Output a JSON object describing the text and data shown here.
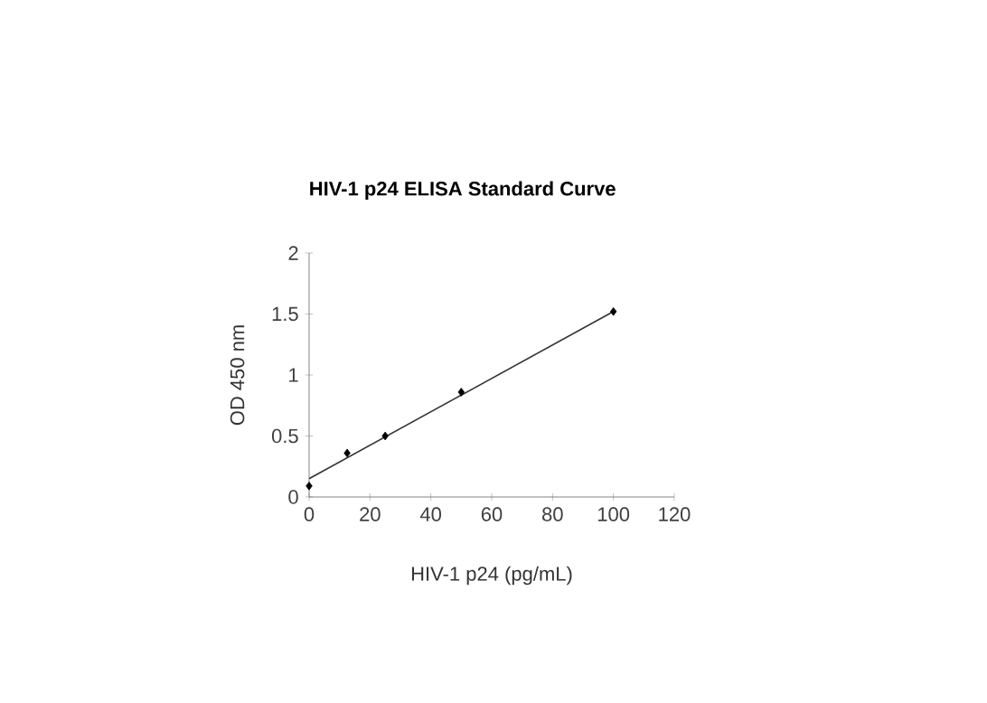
{
  "chart_data": {
    "type": "scatter",
    "title": "HIV-1 p24 ELISA Standard Curve",
    "xlabel": "HIV-1 p24 (pg/mL)",
    "ylabel": "OD 450 nm",
    "xlim": [
      0,
      120
    ],
    "xticks": [
      0,
      20,
      40,
      60,
      80,
      100,
      120
    ],
    "ylim": [
      0,
      2
    ],
    "yticks": [
      0,
      0.5,
      1,
      1.5,
      2
    ],
    "marker": "diamond",
    "grid": false,
    "series": [
      {
        "color": "#000000",
        "x": [
          0,
          12.5,
          25,
          50,
          100
        ],
        "values": [
          0.09,
          0.36,
          0.5,
          0.86,
          1.52
        ]
      },
      {
        "type": "line",
        "marker": "none",
        "color": "#333333",
        "x": [
          0,
          100
        ],
        "values": [
          0.15,
          1.52
        ]
      }
    ]
  }
}
